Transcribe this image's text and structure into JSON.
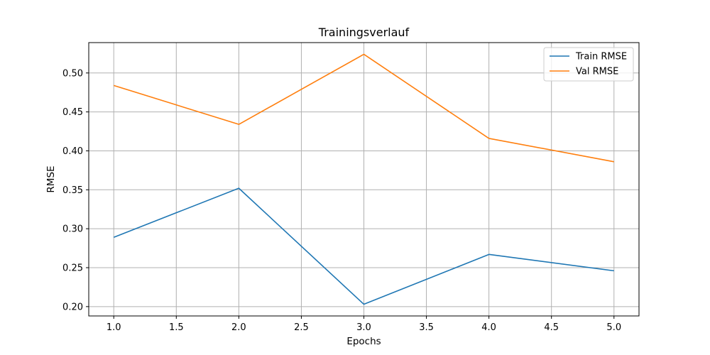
{
  "chart_data": {
    "type": "line",
    "title": "Trainingsverlauf",
    "xlabel": "Epochs",
    "ylabel": "RMSE",
    "x": [
      1,
      2,
      3,
      4,
      5
    ],
    "series": [
      {
        "name": "Train RMSE",
        "color": "#1f77b4",
        "values": [
          0.289,
          0.352,
          0.203,
          0.267,
          0.246
        ]
      },
      {
        "name": "Val RMSE",
        "color": "#ff7f0e",
        "values": [
          0.484,
          0.434,
          0.524,
          0.416,
          0.386
        ]
      }
    ],
    "xlim": [
      0.8,
      5.2
    ],
    "ylim": [
      0.188,
      0.539
    ],
    "xticks": [
      1.0,
      1.5,
      2.0,
      2.5,
      3.0,
      3.5,
      4.0,
      4.5,
      5.0
    ],
    "xtick_labels": [
      "1.0",
      "1.5",
      "2.0",
      "2.5",
      "3.0",
      "3.5",
      "4.0",
      "4.5",
      "5.0"
    ],
    "yticks": [
      0.2,
      0.25,
      0.3,
      0.35,
      0.4,
      0.45,
      0.5
    ],
    "ytick_labels": [
      "0.20",
      "0.25",
      "0.30",
      "0.35",
      "0.40",
      "0.45",
      "0.50"
    ],
    "grid": true,
    "grid_color": "#b0b0b0",
    "legend_position": "top-right"
  }
}
